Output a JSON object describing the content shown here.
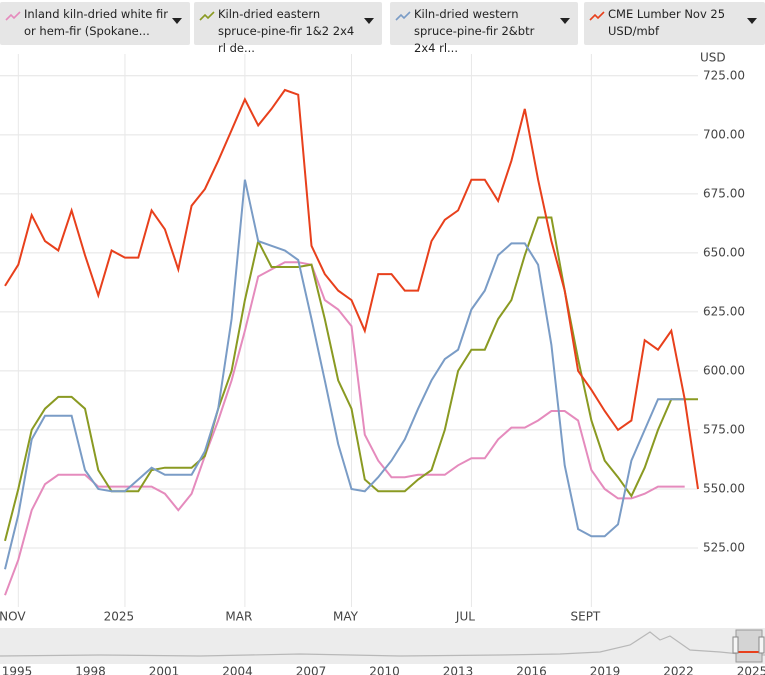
{
  "chart_data": {
    "type": "line",
    "axis_label": "USD",
    "categories": [
      null,
      "NOV",
      null,
      null,
      null,
      null,
      null,
      null,
      null,
      "2025",
      null,
      null,
      null,
      null,
      null,
      null,
      null,
      null,
      "MAR",
      null,
      null,
      null,
      null,
      null,
      null,
      null,
      "MAY",
      null,
      null,
      null,
      null,
      null,
      null,
      null,
      null,
      "JUL",
      null,
      null,
      null,
      null,
      null,
      null,
      null,
      null,
      "SEPT",
      null,
      null,
      null,
      null,
      null,
      null,
      null,
      null
    ],
    "ylim": [
      500,
      730
    ],
    "yticks": [
      {
        "value": 525,
        "label": "525.00"
      },
      {
        "value": 550,
        "label": "550.00"
      },
      {
        "value": 575,
        "label": "575.00"
      },
      {
        "value": 600,
        "label": "600.00"
      },
      {
        "value": 625,
        "label": "625.00"
      },
      {
        "value": 650,
        "label": "650.00"
      },
      {
        "value": 675,
        "label": "675.00"
      },
      {
        "value": 700,
        "label": "700.00"
      },
      {
        "value": 725,
        "label": "725.00"
      }
    ],
    "grid": true,
    "series": [
      {
        "name": "Inland kiln-dried white fir or hem-fir (Spokane...",
        "color": "#e58bbd",
        "values": [
          505,
          520,
          541,
          552,
          556,
          556,
          556,
          551,
          551,
          551,
          551,
          551,
          548,
          541,
          548,
          564,
          579,
          596,
          617,
          640,
          643,
          646,
          646,
          645,
          630,
          626,
          619,
          573,
          562,
          555,
          555,
          556,
          556,
          556,
          560,
          563,
          563,
          571,
          576,
          576,
          579,
          583,
          583,
          579,
          558,
          550,
          546,
          546,
          548,
          551,
          551,
          551,
          null
        ]
      },
      {
        "name": "Kiln-dried eastern spruce-pine-fir 1&2 2x4 rl de...",
        "color": "#8a9a22",
        "values": [
          528,
          550,
          575,
          584,
          589,
          589,
          584,
          558,
          549,
          549,
          549,
          558,
          559,
          559,
          559,
          564,
          584,
          600,
          630,
          655,
          644,
          644,
          644,
          645,
          622,
          596,
          584,
          554,
          549,
          549,
          549,
          554,
          558,
          575,
          600,
          609,
          609,
          622,
          630,
          649,
          665,
          665,
          634,
          605,
          579,
          562,
          555,
          547,
          559,
          575,
          588,
          588,
          588
        ]
      },
      {
        "name": "Kiln-dried western spruce-pine-fir 2&btr 2x4 rl...",
        "color": "#7a9cc6",
        "values": [
          516,
          539,
          571,
          581,
          581,
          581,
          558,
          550,
          549,
          549,
          554,
          559,
          556,
          556,
          556,
          566,
          584,
          622,
          681,
          655,
          653,
          651,
          647,
          622,
          596,
          569,
          550,
          549,
          555,
          562,
          571,
          584,
          596,
          605,
          609,
          626,
          634,
          649,
          654,
          654,
          645,
          611,
          560,
          533,
          530,
          530,
          535,
          562,
          575,
          588,
          588,
          588,
          null
        ]
      },
      {
        "name": "CME Lumber Nov 25 USD/mbf",
        "color": "#e8401c",
        "values": [
          636,
          645,
          666,
          655,
          651,
          668,
          649,
          632,
          651,
          648,
          648,
          668,
          660,
          643,
          670,
          677,
          689,
          702,
          715,
          704,
          711,
          719,
          717,
          653,
          641,
          634,
          630,
          617,
          641,
          641,
          634,
          634,
          655,
          664,
          668,
          681,
          681,
          672,
          689,
          711,
          681,
          655,
          634,
          600,
          592,
          583,
          575,
          579,
          613,
          609,
          617,
          588,
          550
        ]
      }
    ]
  },
  "navigator_years": [
    "1995",
    "1998",
    "2001",
    "2004",
    "2007",
    "2010",
    "2013",
    "2016",
    "2019",
    "2022",
    "2025"
  ]
}
